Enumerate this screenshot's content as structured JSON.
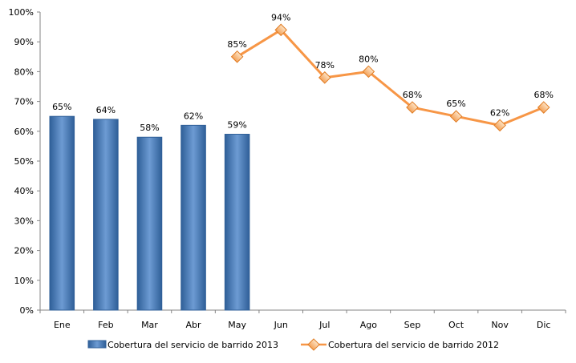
{
  "chart_data": {
    "type": "bar+line",
    "categories": [
      "Ene",
      "Feb",
      "Mar",
      "Abr",
      "May",
      "Jun",
      "Jul",
      "Ago",
      "Sep",
      "Oct",
      "Nov",
      "Dic"
    ],
    "y_ticks": [
      "0%",
      "10%",
      "20%",
      "30%",
      "40%",
      "50%",
      "60%",
      "70%",
      "80%",
      "90%",
      "100%"
    ],
    "ylim": [
      0,
      100
    ],
    "grid": false,
    "legend_position": "bottom",
    "series": [
      {
        "name": "Cobertura del servicio de barrido 2013",
        "kind": "bar",
        "color": "#4F81BD",
        "values": [
          65,
          64,
          58,
          62,
          59,
          null,
          null,
          null,
          null,
          null,
          null,
          null
        ],
        "labels": [
          "65%",
          "64%",
          "58%",
          "62%",
          "59%",
          "",
          "",
          "",
          "",
          "",
          "",
          ""
        ]
      },
      {
        "name": "Cobertura del servicio de barrido 2012",
        "kind": "line",
        "color": "#F79646",
        "values": [
          null,
          null,
          null,
          null,
          85,
          94,
          78,
          80,
          68,
          65,
          62,
          68
        ],
        "labels": [
          "",
          "",
          "",
          "",
          "85%",
          "94%",
          "78%",
          "80%",
          "68%",
          "65%",
          "62%",
          "68%"
        ]
      }
    ]
  }
}
